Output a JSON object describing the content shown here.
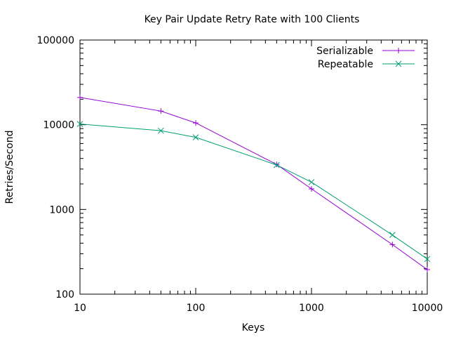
{
  "chart_data": {
    "type": "line",
    "title": "Key Pair Update Retry Rate with 100 Clients",
    "xlabel": "Keys",
    "ylabel": "Retries/Second",
    "xscale": "log",
    "yscale": "log",
    "xlim": [
      10,
      10000
    ],
    "ylim": [
      100,
      100000
    ],
    "x_ticks": [
      10,
      100,
      1000,
      10000
    ],
    "y_ticks": [
      100,
      1000,
      10000,
      100000
    ],
    "x_tick_labels": [
      "10",
      "100",
      "1000",
      "10000"
    ],
    "y_tick_labels": [
      "100",
      "1000",
      "10000",
      "100000"
    ],
    "grid": false,
    "legend": "top-right",
    "x": [
      10,
      50,
      100,
      500,
      1000,
      5000,
      10000
    ],
    "series": [
      {
        "name": "Serializable",
        "color": "#9400d3",
        "marker": "plus",
        "values": [
          21000,
          14500,
          10500,
          3400,
          1750,
          385,
          195
        ]
      },
      {
        "name": "Repeatable",
        "color": "#009e73",
        "marker": "cross",
        "values": [
          10200,
          8500,
          7100,
          3350,
          2100,
          500,
          260
        ]
      }
    ]
  }
}
